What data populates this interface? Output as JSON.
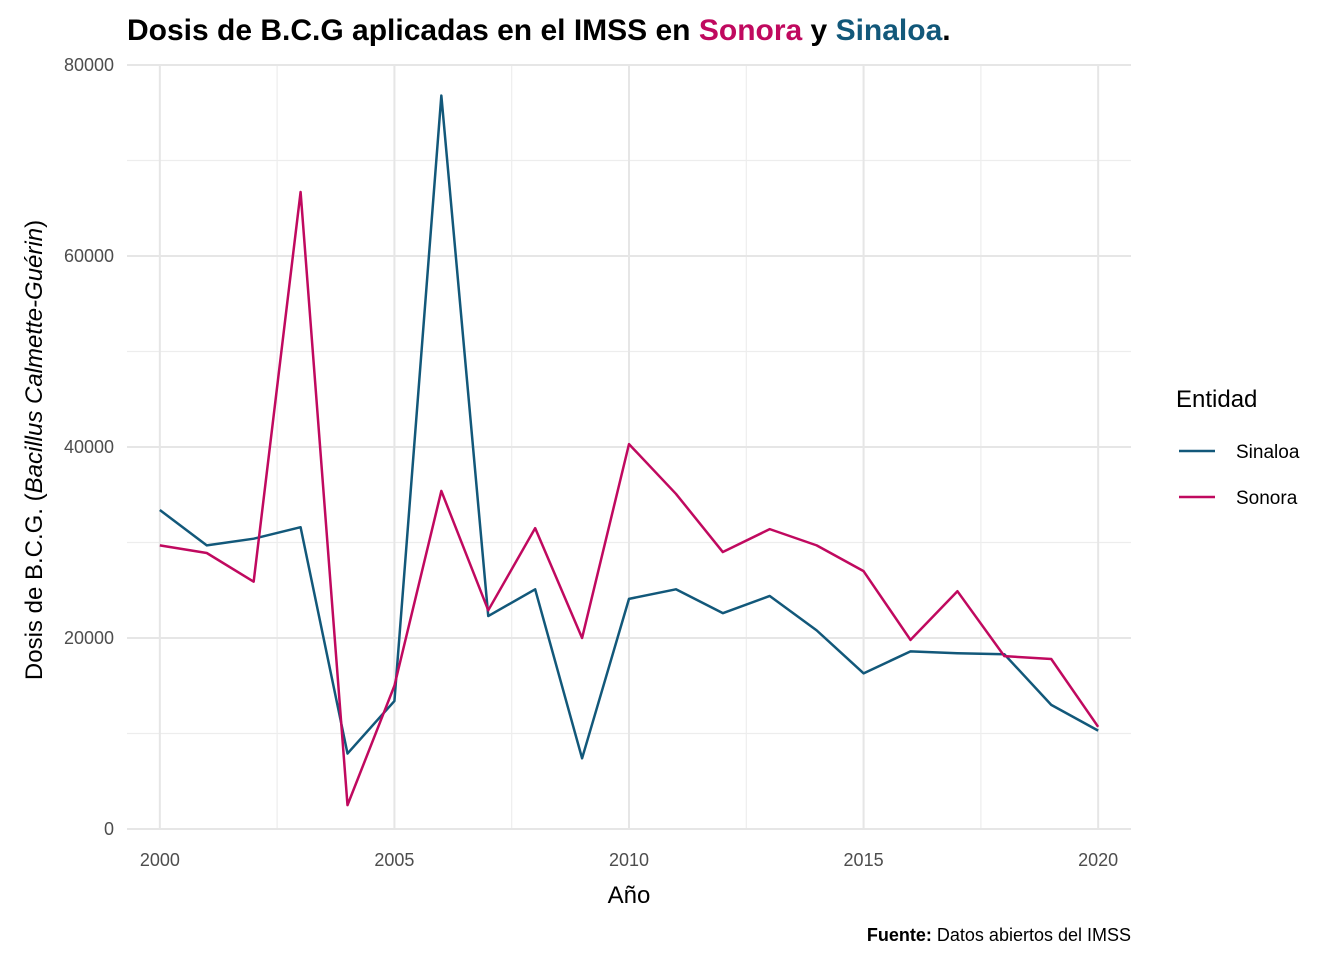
{
  "chart_data": {
    "type": "line",
    "title_parts": {
      "prefix": "Dosis de B.C.G aplicadas en el IMSS en ",
      "sonora": "Sonora",
      "middle": " y ",
      "sinaloa": "Sinaloa",
      "suffix": "."
    },
    "xlabel": "Año",
    "ylabel_prefix": "Dosis de B.C.G. (",
    "ylabel_italic": "Bacillus Calmette-Guérin",
    "ylabel_suffix": ")",
    "caption_bold": "Fuente:",
    "caption_text": " Datos abiertos del IMSS",
    "xlim": [
      1999.3,
      2020.7
    ],
    "ylim": [
      0,
      80000
    ],
    "x_ticks": [
      2000,
      2005,
      2010,
      2015,
      2020
    ],
    "x_minor": [
      2002.5,
      2007.5,
      2012.5,
      2017.5
    ],
    "y_ticks": [
      0,
      20000,
      40000,
      60000,
      80000
    ],
    "y_minor": [
      10000,
      30000,
      50000,
      70000
    ],
    "grid": true,
    "legend": {
      "title": "Entidad",
      "position": "right"
    },
    "x": [
      2000,
      2001,
      2002,
      2003,
      2004,
      2005,
      2006,
      2007,
      2008,
      2009,
      2010,
      2011,
      2012,
      2013,
      2014,
      2015,
      2016,
      2017,
      2018,
      2019,
      2020
    ],
    "series": [
      {
        "name": "Sinaloa",
        "color": "#12587a",
        "values": [
          33400,
          29700,
          30400,
          31600,
          7900,
          13400,
          76800,
          22300,
          25100,
          7400,
          24100,
          25100,
          22600,
          24400,
          20800,
          16300,
          18600,
          18400,
          18300,
          13000,
          10300
        ]
      },
      {
        "name": "Sonora",
        "color": "#c0095f",
        "values": [
          29700,
          28900,
          25900,
          66700,
          2500,
          15000,
          35400,
          22900,
          31500,
          20000,
          40300,
          35100,
          29000,
          31400,
          29700,
          27000,
          19800,
          24900,
          18100,
          17800,
          10700
        ]
      }
    ]
  }
}
